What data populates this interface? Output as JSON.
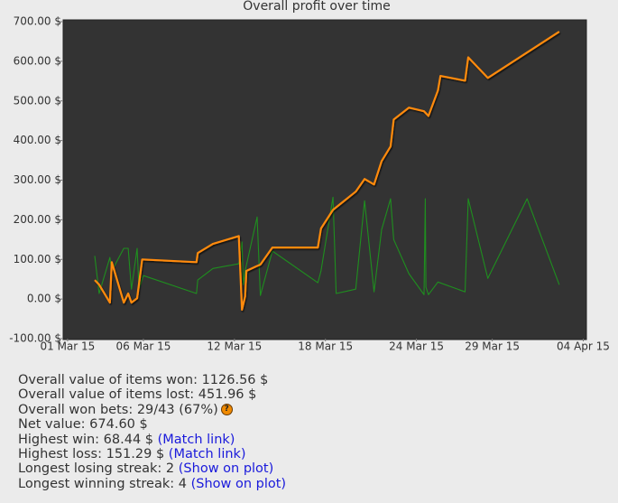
{
  "chart_data": {
    "type": "line",
    "title": "Overall profit over time",
    "xlim": [
      "2015-02-28T17:00",
      "2015-04-04T05:00"
    ],
    "xticks": [
      {
        "value": "2015-03-01T00:00",
        "label": "01 Mar 15"
      },
      {
        "value": "2015-03-06T00:00",
        "label": "06 Mar 15"
      },
      {
        "value": "2015-03-12T00:00",
        "label": "12 Mar 15"
      },
      {
        "value": "2015-03-18T00:00",
        "label": "18 Mar 15"
      },
      {
        "value": "2015-03-24T00:00",
        "label": "24 Mar 15"
      },
      {
        "value": "2015-03-29T00:00",
        "label": "29 Mar 15"
      },
      {
        "value": "2015-04-04T00:00",
        "label": "04 Apr 15"
      }
    ],
    "ylim": [
      -100,
      700
    ],
    "yticks": [
      {
        "value": -100,
        "label": "-100.00 $"
      },
      {
        "value": 0,
        "label": "0.00 $"
      },
      {
        "value": 100,
        "label": "100.00 $"
      },
      {
        "value": 200,
        "label": "200.00 $"
      },
      {
        "value": 300,
        "label": "300.00 $"
      },
      {
        "value": 400,
        "label": "400.00 $"
      },
      {
        "value": 500,
        "label": "500.00 $"
      },
      {
        "value": 600,
        "label": "600.00 $"
      },
      {
        "value": 700,
        "label": "700.00 $"
      }
    ],
    "grid": false,
    "series": [
      {
        "color": "#1f8f1f",
        "x": [
          "2015-03-02T19:00",
          "2015-03-03T02:00",
          "2015-03-03T19:00",
          "2015-03-03T22:00",
          "2015-03-04T17:00",
          "2015-03-05T00:00",
          "2015-03-05T05:00",
          "2015-03-05T14:00",
          "2015-03-05T17:00",
          "2015-03-06T00:00",
          "2015-03-09T12:00",
          "2015-03-09T14:00",
          "2015-03-10T14:00",
          "2015-03-12T07:00",
          "2015-03-12T12:00",
          "2015-03-12T14:00",
          "2015-03-12T17:00",
          "2015-03-13T12:00",
          "2015-03-13T17:00",
          "2015-03-14T12:00",
          "2015-03-17T12:00",
          "2015-03-17T17:00",
          "2015-03-18T12:00",
          "2015-03-18T17:00",
          "2015-03-20T00:00",
          "2015-03-20T14:00",
          "2015-03-21T05:00",
          "2015-03-21T17:00",
          "2015-03-22T07:00",
          "2015-03-22T12:00",
          "2015-03-23T12:00",
          "2015-03-24T12:00",
          "2015-03-24T14:00",
          "2015-03-24T15:00",
          "2015-03-24T19:00",
          "2015-03-25T10:00",
          "2015-03-27T05:00",
          "2015-03-27T10:00",
          "2015-03-28T17:00",
          "2015-03-31T07:00",
          "2015-04-02T10:00"
        ],
        "values": [
          109,
          14,
          105,
          71,
          128,
          128,
          25,
          128,
          25,
          59,
          14,
          48,
          77,
          89,
          144,
          36,
          71,
          207,
          9,
          121,
          41,
          71,
          257,
          14,
          25,
          248,
          18,
          175,
          253,
          150,
          64,
          11,
          253,
          30,
          11,
          43,
          18,
          253,
          52,
          253,
          36
        ]
      },
      {
        "color": "#ff8a0a",
        "x": [
          "2015-03-02T19:00",
          "2015-03-03T02:00",
          "2015-03-03T19:00",
          "2015-03-03T22:00",
          "2015-03-04T17:00",
          "2015-03-05T00:00",
          "2015-03-05T05:00",
          "2015-03-05T14:00",
          "2015-03-05T22:00",
          "2015-03-09T12:00",
          "2015-03-09T14:00",
          "2015-03-10T14:00",
          "2015-03-12T07:00",
          "2015-03-12T12:00",
          "2015-03-12T17:00",
          "2015-03-12T19:00",
          "2015-03-13T10:00",
          "2015-03-13T17:00",
          "2015-03-14T12:00",
          "2015-03-17T12:00",
          "2015-03-17T17:00",
          "2015-03-18T12:00",
          "2015-03-20T00:00",
          "2015-03-20T14:00",
          "2015-03-21T05:00",
          "2015-03-21T17:00",
          "2015-03-22T07:00",
          "2015-03-22T12:00",
          "2015-03-23T12:00",
          "2015-03-24T12:00",
          "2015-03-24T19:00",
          "2015-03-25T10:00",
          "2015-03-25T14:00",
          "2015-03-27T05:00",
          "2015-03-27T10:00",
          "2015-03-28T17:00",
          "2015-04-02T10:00"
        ],
        "values": [
          48,
          36,
          -9,
          93,
          -9,
          14,
          -9,
          2,
          100,
          93,
          116,
          139,
          159,
          -27,
          7,
          71,
          82,
          87,
          130,
          130,
          178,
          225,
          271,
          303,
          289,
          348,
          385,
          453,
          483,
          474,
          462,
          526,
          563,
          551,
          610,
          558,
          674.6
        ]
      }
    ]
  },
  "stats": [
    {
      "text": "Overall value of items won: 1126.56 $"
    },
    {
      "text": "Overall value of items lost: 451.96 $"
    },
    {
      "text": "Overall won bets: 29/43 (67%)",
      "icon": "?"
    },
    {
      "text": "Net value: 674.60 $"
    },
    {
      "text": "Highest win: 68.44 $",
      "link": "(Match link)"
    },
    {
      "text": "Highest loss: 151.29 $",
      "link": "(Match link)"
    },
    {
      "text": "Longest losing streak: 2",
      "link": "(Show on plot)"
    },
    {
      "text": "Longest winning streak: 4",
      "link": "(Show on plot)"
    }
  ]
}
